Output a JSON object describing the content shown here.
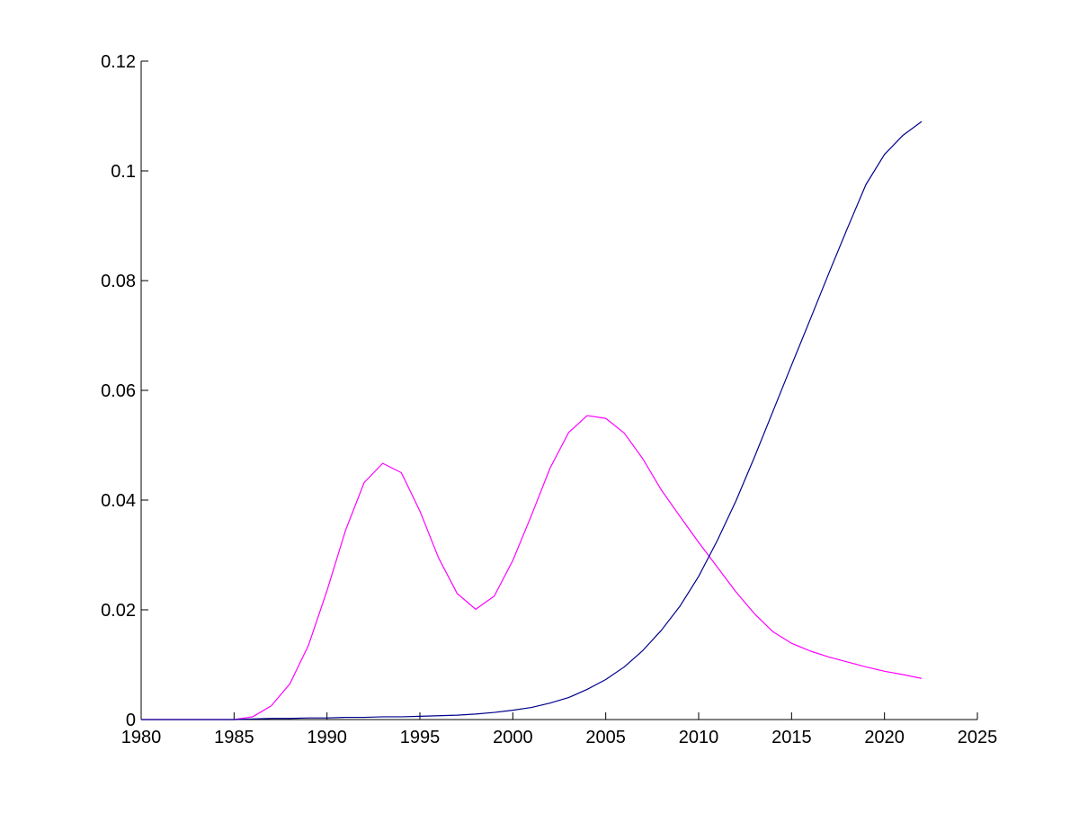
{
  "chart_data": {
    "type": "line",
    "title": "",
    "xlabel": "",
    "ylabel": "",
    "xlim": [
      1980,
      2025
    ],
    "ylim": [
      0,
      0.12
    ],
    "x_ticks": [
      1980,
      1985,
      1990,
      1995,
      2000,
      2005,
      2010,
      2015,
      2020,
      2025
    ],
    "x_tick_labels": [
      "1980",
      "1985",
      "1990",
      "1995",
      "2000",
      "2005",
      "2010",
      "2015",
      "2020",
      "2025"
    ],
    "y_ticks": [
      0,
      0.02,
      0.04,
      0.06,
      0.08,
      0.1,
      0.12
    ],
    "y_tick_labels": [
      "0",
      "0.02",
      "0.04",
      "0.06",
      "0.08",
      "0.1",
      "0.12"
    ],
    "grid": false,
    "legend": "none",
    "x": [
      1980,
      1981,
      1982,
      1983,
      1984,
      1985,
      1986,
      1987,
      1988,
      1989,
      1990,
      1991,
      1992,
      1993,
      1994,
      1995,
      1996,
      1997,
      1998,
      1999,
      2000,
      2001,
      2002,
      2003,
      2004,
      2005,
      2006,
      2007,
      2008,
      2009,
      2010,
      2011,
      2012,
      2013,
      2014,
      2015,
      2016,
      2017,
      2018,
      2019,
      2020,
      2021,
      2022
    ],
    "series": [
      {
        "color": "#ff00ff",
        "values": [
          0,
          0,
          0,
          0,
          0,
          0,
          0.0005,
          0.0025,
          0.0065,
          0.0135,
          0.0235,
          0.0345,
          0.0432,
          0.0467,
          0.045,
          0.038,
          0.0295,
          0.023,
          0.0201,
          0.0225,
          0.029,
          0.0372,
          0.0458,
          0.0523,
          0.0554,
          0.0549,
          0.0522,
          0.0475,
          0.0418,
          0.037,
          0.0323,
          0.0278,
          0.0233,
          0.0193,
          0.016,
          0.0139,
          0.0125,
          0.0114,
          0.0105,
          0.0096,
          0.0088,
          0.0082,
          0.0075
        ]
      },
      {
        "color": "#00008b",
        "values": [
          0,
          0,
          0,
          0,
          0,
          0,
          0.0001,
          0.0002,
          0.0002,
          0.0003,
          0.0003,
          0.0004,
          0.0004,
          0.0005,
          0.0005,
          0.0006,
          0.0007,
          0.0008,
          0.001,
          0.0013,
          0.0017,
          0.0022,
          0.003,
          0.004,
          0.0055,
          0.0073,
          0.0096,
          0.0126,
          0.0163,
          0.0207,
          0.0261,
          0.0326,
          0.0398,
          0.0478,
          0.0562,
          0.0646,
          0.0729,
          0.0813,
          0.0895,
          0.0975,
          0.103,
          0.1065,
          0.109
        ]
      }
    ]
  }
}
